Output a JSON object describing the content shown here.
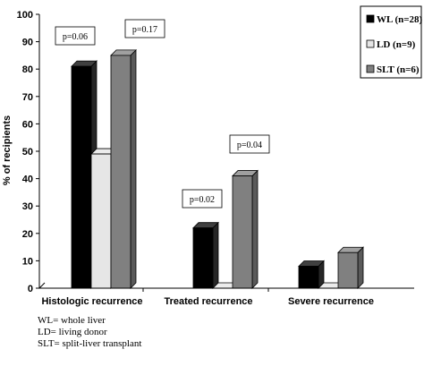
{
  "chart_data": {
    "type": "bar",
    "ylabel": "% of recipients",
    "xlabel": "",
    "ylim": [
      0,
      100
    ],
    "yticks": [
      0,
      10,
      20,
      30,
      40,
      50,
      60,
      70,
      80,
      90,
      100
    ],
    "categories": [
      "Histologic recurrence",
      "Treated recurrence",
      "Severe recurrence"
    ],
    "series": [
      {
        "name": "WL (n=28)",
        "color": "#000000",
        "values": [
          81,
          22,
          8
        ]
      },
      {
        "name": "LD (n=9)",
        "color": "#e6e6e6",
        "values": [
          49,
          0,
          0
        ]
      },
      {
        "name": "SLT (n=6)",
        "color": "#808080",
        "values": [
          85,
          41,
          13
        ]
      }
    ],
    "annotations": [
      {
        "text": "p=0.06",
        "category": 0
      },
      {
        "text": "p=0.17",
        "category": 0
      },
      {
        "text": "p=0.02",
        "category": 1
      },
      {
        "text": "p=0.04",
        "category": 1
      }
    ],
    "legend_position": "top-right",
    "grid": false,
    "style": "3d"
  },
  "footnotes": [
    "WL= whole liver",
    "LD= living donor",
    "SLT= split-liver transplant"
  ]
}
